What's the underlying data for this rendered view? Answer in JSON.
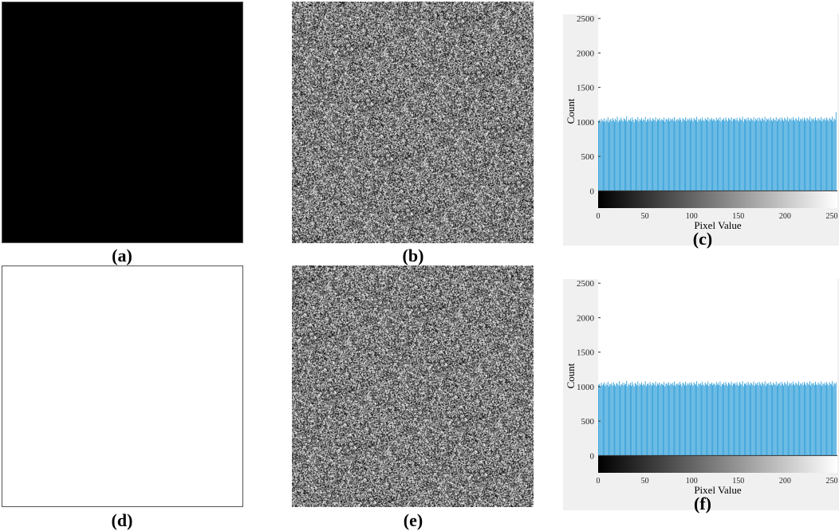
{
  "panels": {
    "a": {
      "caption": "(a)",
      "fill": "#000000"
    },
    "b": {
      "caption": "(b)"
    },
    "c": {
      "caption": "(c)"
    },
    "d": {
      "caption": "(d)",
      "fill": "#ffffff"
    },
    "e": {
      "caption": "(e)"
    },
    "f": {
      "caption": "(f)"
    }
  },
  "colors": {
    "bar": "#1f97d6",
    "plot_bg": "#ffffff",
    "figure_bg": "#f0f0f0"
  },
  "chart_data": [
    {
      "type": "bar",
      "panel": "c",
      "title": "",
      "xlabel": "Pixel Value",
      "ylabel": "Count",
      "xlim": [
        0,
        256
      ],
      "ylim": [
        -250,
        2560
      ],
      "yticks": [
        0,
        500,
        1000,
        1500,
        2000,
        2500
      ],
      "xticks": [
        0,
        50,
        100,
        150,
        200,
        250
      ],
      "colorbar": "grayscale",
      "x": "0..255 (256 bins)",
      "values": [
        1018,
        1034,
        987,
        1046,
        1021,
        1009,
        1052,
        1000,
        1038,
        1014,
        1069,
        995,
        1027,
        1043,
        1012,
        1057,
        1031,
        1004,
        1048,
        1022,
        1076,
        998,
        1035,
        1015,
        1062,
        1029,
        1008,
        1053,
        1040,
        1017,
        1084,
        1003,
        1036,
        1024,
        1050,
        1011,
        1066,
        1028,
        996,
        1045,
        1033,
        1019,
        1071,
        1007,
        1042,
        1026,
        1058,
        1013,
        1039,
        1022,
        1073,
        1001,
        1030,
        1046,
        1016,
        1061,
        1025,
        1009,
        1054,
        1037,
        1020,
        1068,
        1005,
        1043,
        1027,
        1056,
        1014,
        1041,
        1032,
        1018,
        1064,
        1000,
        1035,
        1049,
        1023,
        1059,
        1010,
        1044,
        1029,
        1052,
        1017,
        1070,
        1006,
        1038,
        1026,
        1047,
        1019,
        1063,
        1033,
        1004,
        1055,
        1040,
        1021,
        1067,
        1012,
        1045,
        1028,
        1051,
        1016,
        1060,
        1034,
        1008,
        1057,
        1039,
        1024,
        1074,
        1002,
        1041,
        1030,
        1049,
        1015,
        1065,
        1027,
        1011,
        1053,
        1036,
        1022,
        1069,
        1007,
        1044,
        1031,
        1058,
        1018,
        1042,
        1035,
        1013,
        1062,
        1026,
        1050,
        1020,
        1071,
        1005,
        1037,
        1029,
        1054,
        1016,
        1064,
        1032,
        1009,
        1056,
        1040,
        1023,
        1068,
        1011,
        1046,
        1034,
        1051,
        1019,
        1059,
        1028,
        1006,
        1061,
        1038,
        1025,
        1075,
        1003,
        1043,
        1030,
        1052,
        1017,
        1066,
        1033,
        1012,
        1055,
        1039,
        1021,
        1070,
        1008,
        1045,
        1027,
        1057,
        1015,
        1063,
        1036,
        1010,
        1060,
        1041,
        1024,
        1072,
        1004,
        1047,
        1031,
        1050,
        1018,
        1067,
        1029,
        1013,
        1054,
        1037,
        1022,
        1069,
        1009,
        1044,
        1032,
        1058,
        1016,
        1065,
        1035,
        1011,
        1061,
        1042,
        1026,
        1073,
        1006,
        1048,
        1030,
        1053,
        1020,
        1068,
        1034,
        1014,
        1056,
        1040,
        1023,
        1071,
        1010,
        1046,
        1028,
        1055,
        1017,
        1064,
        1037,
        1012,
        1059,
        1043,
        1025,
        1074,
        1007,
        1049,
        1033,
        1052,
        1019,
        1066,
        1031,
        1015,
        1057,
        1039,
        1022,
        1070,
        1008,
        1045,
        1030,
        1054,
        1018,
        1063,
        1036,
        1013,
        1060,
        1041,
        1027,
        1076,
        1005,
        1050,
        1032,
        1140
      ]
    },
    {
      "type": "bar",
      "panel": "f",
      "title": "",
      "xlabel": "Pixel Value",
      "ylabel": "Count",
      "xlim": [
        0,
        256
      ],
      "ylim": [
        -250,
        2560
      ],
      "yticks": [
        0,
        500,
        1000,
        1500,
        2000,
        2500
      ],
      "xticks": [
        0,
        50,
        100,
        150,
        200,
        250
      ],
      "colorbar": "grayscale",
      "x": "0..255 (256 bins)",
      "values": [
        1025,
        1041,
        1003,
        1056,
        1018,
        1035,
        1062,
        1009,
        1047,
        1022,
        1071,
        1001,
        1038,
        1029,
        1054,
        1013,
        1066,
        1032,
        1007,
        1051,
        1044,
        1019,
        1078,
        1004,
        1036,
        1027,
        1060,
        1015,
        1049,
        1033,
        1085,
        1006,
        1042,
        1024,
        1057,
        1011,
        1068,
        1030,
        1002,
        1053,
        1039,
        1021,
        1074,
        1010,
        1045,
        1028,
        1063,
        1016,
        1040,
        1026,
        1077,
        1005,
        1034,
        1050,
        1019,
        1065,
        1031,
        1012,
        1058,
        1043,
        1023,
        1072,
        1008,
        1048,
        1029,
        1061,
        1017,
        1044,
        1036,
        1021,
        1069,
        1003,
        1039,
        1052,
        1026,
        1064,
        1014,
        1047,
        1032,
        1055,
        1020,
        1075,
        1009,
        1041,
        1030,
        1051,
        1022,
        1067,
        1037,
        1006,
        1059,
        1045,
        1024,
        1071,
        1015,
        1049,
        1031,
        1056,
        1019,
        1063,
        1038,
        1011,
        1062,
        1043,
        1027,
        1079,
        1005,
        1046,
        1033,
        1053,
        1018,
        1070,
        1030,
        1014,
        1057,
        1040,
        1025,
        1073,
        1010,
        1048,
        1035,
        1061,
        1021,
        1046,
        1039,
        1016,
        1066,
        1029,
        1054,
        1023,
        1076,
        1008,
        1042,
        1032,
        1058,
        1019,
        1068,
        1036,
        1012,
        1060,
        1044,
        1026,
        1072,
        1014,
        1050,
        1038,
        1055,
        1022,
        1063,
        1031,
        1009,
        1065,
        1042,
        1028,
        1080,
        1006,
        1047,
        1033,
        1056,
        1020,
        1070,
        1037,
        1015,
        1059,
        1043,
        1024,
        1074,
        1011,
        1049,
        1030,
        1061,
        1018,
        1067,
        1040,
        1013,
        1064,
        1045,
        1027,
        1077,
        1007,
        1051,
        1034,
        1054,
        1021,
        1071,
        1032,
        1016,
        1058,
        1041,
        1025,
        1073,
        1012,
        1048,
        1035,
        1062,
        1019,
        1069,
        1038,
        1014,
        1065,
        1046,
        1029,
        1078,
        1009,
        1052,
        1033,
        1057,
        1023,
        1072,
        1037,
        1017,
        1060,
        1044,
        1026,
        1075,
        1013,
        1050,
        1031,
        1059,
        1020,
        1068,
        1041,
        1015,
        1063,
        1047,
        1028,
        1079,
        1010,
        1053,
        1036,
        1056,
        1022,
        1070,
        1034,
        1018,
        1061,
        1042,
        1025,
        1074,
        1011,
        1049,
        1033,
        1058,
        1021,
        1067,
        1039,
        1016,
        1064,
        1045,
        1030,
        1081,
        1008,
        1054,
        1035,
        1060
      ]
    }
  ]
}
